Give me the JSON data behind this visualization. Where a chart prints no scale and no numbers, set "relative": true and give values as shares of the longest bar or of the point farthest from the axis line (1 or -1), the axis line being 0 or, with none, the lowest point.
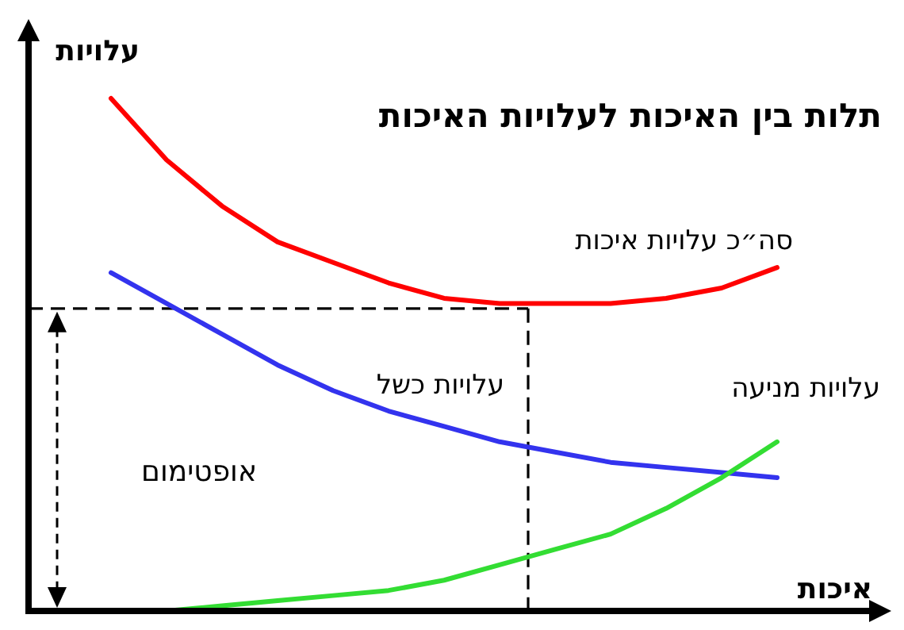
{
  "chart_data": {
    "type": "line",
    "relative": true,
    "title": "תלות בין האיכות לעלויות האיכות",
    "xlabel": "איכות",
    "ylabel": "עלויות",
    "categories": [
      null,
      null,
      null,
      null,
      null,
      null,
      null,
      null,
      null,
      null,
      null,
      null,
      null
    ],
    "series": [
      {
        "name": "סה״כ עלויות איכות",
        "color": "#ff0000",
        "values": [
          1.0,
          0.88,
          0.79,
          0.72,
          0.68,
          0.64,
          0.61,
          0.6,
          0.6,
          0.6,
          0.61,
          0.63,
          0.67
        ]
      },
      {
        "name": "עלויות כשל",
        "color": "#3333ee",
        "values": [
          0.66,
          0.6,
          0.54,
          0.48,
          0.43,
          0.39,
          0.36,
          0.33,
          0.31,
          0.29,
          0.28,
          0.27,
          0.26
        ]
      },
      {
        "name": "עלויות מניעה",
        "color": "#33dd33",
        "values": [
          null,
          0.0,
          0.01,
          0.02,
          0.03,
          0.04,
          0.06,
          0.09,
          0.12,
          0.15,
          0.2,
          0.26,
          0.33
        ]
      }
    ],
    "ref_lines": [
      {
        "axis": "y",
        "value": 0.59,
        "color": "#000000",
        "line_style": "dashed"
      }
    ],
    "annotations": [
      "אופטימום"
    ]
  }
}
